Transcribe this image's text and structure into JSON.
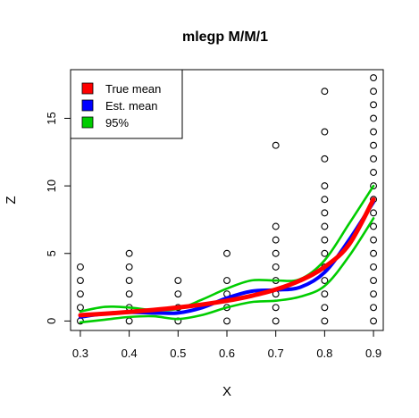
{
  "chart_data": {
    "type": "scatter",
    "title": "mlegp M/M/1",
    "xlabel": "X",
    "ylabel": "Z",
    "xlim": [
      0.28,
      0.92
    ],
    "ylim": [
      -0.7,
      18.6
    ],
    "x_ticks": [
      "0.3",
      "0.4",
      "0.5",
      "0.6",
      "0.7",
      "0.8",
      "0.9"
    ],
    "y_ticks": [
      "0",
      "5",
      "10",
      "15"
    ],
    "grid": false,
    "legend_position": "top-left",
    "legend": [
      {
        "label": "True mean",
        "color": "#ff0000"
      },
      {
        "label": "Est. mean",
        "color": "#0000ff"
      },
      {
        "label": "95%",
        "color": "#00cd00"
      }
    ],
    "points": [
      {
        "x": 0.3,
        "y": [
          0,
          1,
          2,
          3,
          4
        ]
      },
      {
        "x": 0.4,
        "y": [
          0,
          1,
          2,
          3,
          4,
          5
        ]
      },
      {
        "x": 0.5,
        "y": [
          0,
          1,
          2,
          3
        ]
      },
      {
        "x": 0.6,
        "y": [
          0,
          1,
          2,
          3,
          5
        ]
      },
      {
        "x": 0.7,
        "y": [
          0,
          1,
          2,
          3,
          4,
          5,
          6,
          7,
          13
        ]
      },
      {
        "x": 0.8,
        "y": [
          0,
          1,
          2,
          3,
          4,
          5,
          6,
          7,
          8,
          9,
          10,
          12,
          14,
          17
        ]
      },
      {
        "x": 0.9,
        "y": [
          0,
          1,
          2,
          3,
          4,
          5,
          6,
          7,
          8,
          9,
          10,
          11,
          12,
          13,
          14,
          15,
          16,
          17,
          18
        ]
      }
    ],
    "series": [
      {
        "name": "True mean",
        "color": "#ff0000",
        "x": [
          0.3,
          0.35,
          0.4,
          0.45,
          0.5,
          0.55,
          0.6,
          0.65,
          0.7,
          0.75,
          0.8,
          0.85,
          0.9
        ],
        "y": [
          0.43,
          0.54,
          0.67,
          0.82,
          1.0,
          1.22,
          1.5,
          1.86,
          2.33,
          3.0,
          4.0,
          5.67,
          9.0
        ]
      },
      {
        "name": "Est. mean",
        "color": "#0000ff",
        "x": [
          0.3,
          0.35,
          0.4,
          0.45,
          0.5,
          0.55,
          0.6,
          0.65,
          0.7,
          0.75,
          0.8,
          0.85,
          0.9
        ],
        "y": [
          0.3,
          0.55,
          0.65,
          0.6,
          0.6,
          1.0,
          1.7,
          2.2,
          2.3,
          2.5,
          3.6,
          6.0,
          8.8
        ]
      },
      {
        "name": "95%",
        "color": "#00cd00",
        "x": [
          0.3,
          0.35,
          0.4,
          0.45,
          0.5,
          0.55,
          0.6,
          0.65,
          0.7,
          0.75,
          0.8,
          0.85,
          0.9
        ],
        "y": [
          0.7,
          1.05,
          1.0,
          0.8,
          0.9,
          1.6,
          2.4,
          3.0,
          3.0,
          3.1,
          4.5,
          7.2,
          10.0
        ]
      },
      {
        "name": "95%",
        "color": "#00cd00",
        "x": [
          0.3,
          0.35,
          0.4,
          0.45,
          0.5,
          0.55,
          0.6,
          0.65,
          0.7,
          0.75,
          0.8,
          0.85,
          0.9
        ],
        "y": [
          -0.1,
          0.1,
          0.3,
          0.35,
          0.15,
          0.45,
          1.0,
          1.4,
          1.5,
          1.8,
          2.6,
          4.8,
          7.6
        ]
      }
    ]
  }
}
